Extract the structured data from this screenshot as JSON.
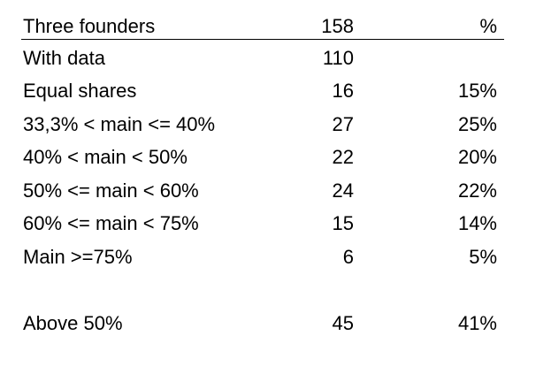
{
  "table": {
    "header": {
      "label": "Three founders",
      "count": "158",
      "pct": "%"
    },
    "rows": [
      {
        "label": "With data",
        "count": "110",
        "pct": ""
      },
      {
        "label": "Equal shares",
        "count": "16",
        "pct": "15%"
      },
      {
        "label": "33,3% < main <= 40%",
        "count": "27",
        "pct": "25%"
      },
      {
        "label": "40% < main < 50%",
        "count": "22",
        "pct": "20%"
      },
      {
        "label": "50% <= main < 60%",
        "count": "24",
        "pct": "22%"
      },
      {
        "label": "60% <= main < 75%",
        "count": "15",
        "pct": "14%"
      },
      {
        "label": "Main >=75%",
        "count": "6",
        "pct": "5%"
      }
    ],
    "summary": {
      "label": "Above 50%",
      "count": "45",
      "pct": "41%"
    }
  }
}
